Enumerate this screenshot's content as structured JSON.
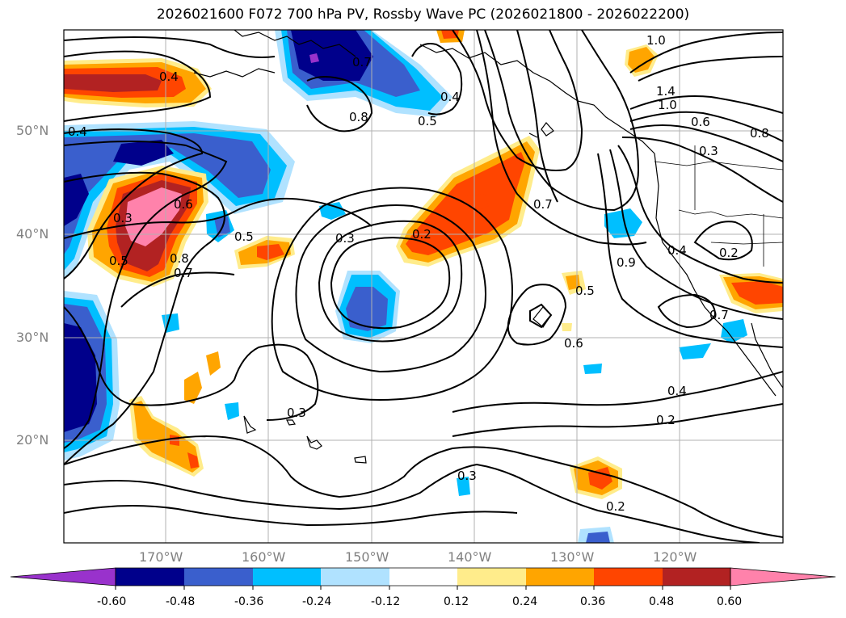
{
  "title": "2026021600 F072 700 hPa PV, Rossby Wave PC (2026021800 - 2026022200)",
  "map": {
    "region": "North-East Pacific",
    "lat_labels": [
      "50°N",
      "40°N",
      "30°N",
      "20°N"
    ],
    "lon_labels": [
      "170°W",
      "160°W",
      "150°W",
      "140°W",
      "130°W",
      "120°W"
    ],
    "land_color": "#ffffff",
    "coastline_color": "#000000"
  },
  "shading": {
    "variable": "Rossby Wave PC",
    "colors": [
      "#9932cc",
      "#00008b",
      "#3a5fcd",
      "#00bfff",
      "#b0e2ff",
      "#ffffff",
      "#ffec8b",
      "#ffa500",
      "#ff4500",
      "#b22222",
      "#ff82ab"
    ],
    "levels": [
      "-0.60",
      "-0.48",
      "-0.36",
      "-0.24",
      "-0.12",
      "0.12",
      "0.24",
      "0.36",
      "0.48",
      "0.60"
    ]
  },
  "contours": {
    "variable": "700 hPa PV",
    "labels": [
      "0.4",
      "0.4",
      "0.6",
      "0.3",
      "0.5",
      "0.7",
      "0.8",
      "0.8",
      "0.4",
      "0.5",
      "0.7",
      "0.3",
      "0.2",
      "0.7",
      "1.0",
      "1.4",
      "1.0",
      "0.6",
      "0.8",
      "0.3",
      "0.5",
      "0.9",
      "0.4",
      "0.2",
      "0.5",
      "0.7",
      "0.6",
      "0.4",
      "0.2",
      "0.3",
      "0.3",
      "0.2"
    ]
  }
}
